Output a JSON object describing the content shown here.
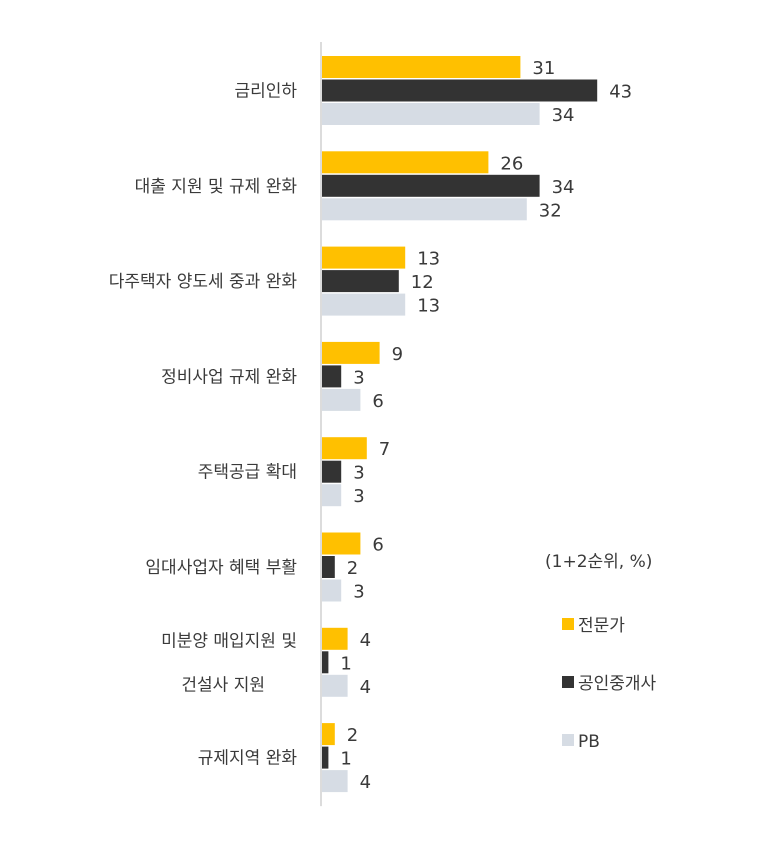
{
  "chart_data": {
    "type": "bar",
    "orientation": "horizontal",
    "categories": [
      [
        "금리인하"
      ],
      [
        "대출 지원 및 규제 완화"
      ],
      [
        "다주택자 양도세 중과 완화"
      ],
      [
        "정비사업 규제 완화"
      ],
      [
        "주택공급 확대"
      ],
      [
        "임대사업자 혜택 부활"
      ],
      [
        "미분양 매입지원 및",
        "건설사 지원"
      ],
      [
        "규제지역 완화"
      ]
    ],
    "series": [
      {
        "name": "전문가",
        "color": "#FFC000",
        "values": [
          31,
          26,
          13,
          9,
          7,
          6,
          4,
          2
        ]
      },
      {
        "name": "공인중개사",
        "color": "#333333",
        "values": [
          43,
          34,
          12,
          3,
          3,
          2,
          1,
          1
        ]
      },
      {
        "name": "PB",
        "color": "#D6DCE4",
        "values": [
          34,
          32,
          13,
          6,
          3,
          3,
          4,
          4
        ]
      }
    ],
    "legend_title": "(1+2순위, %)",
    "legend_position": "bottom-right",
    "xlim": [
      0,
      50
    ],
    "grid": false
  }
}
